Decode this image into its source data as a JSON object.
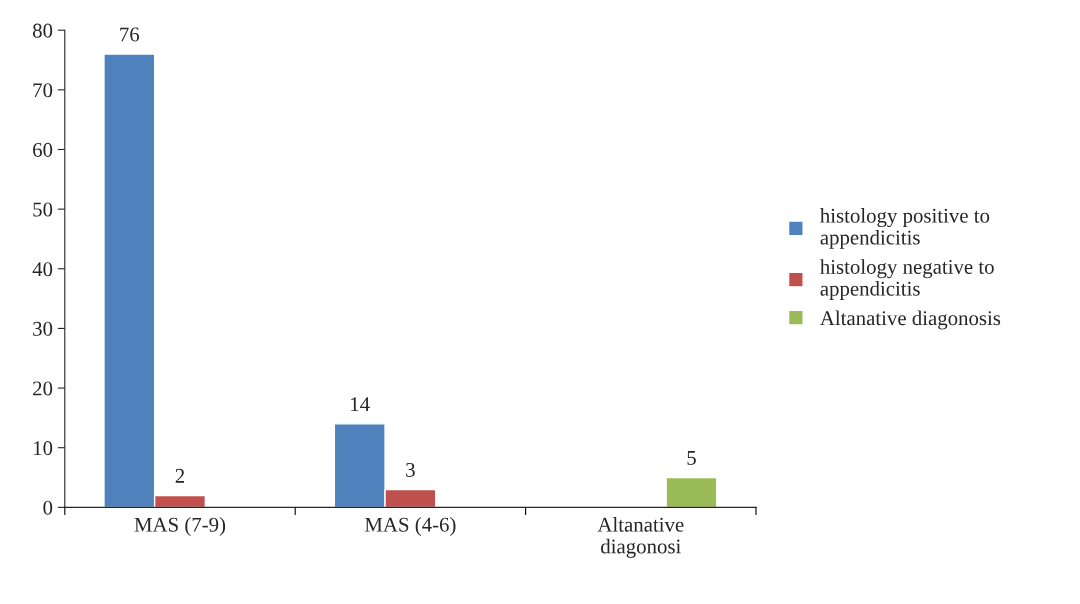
{
  "chart_data": {
    "type": "bar",
    "categories": [
      "MAS (7-9)",
      "MAS (4-6)",
      "Altanative\ndiagonosi"
    ],
    "series": [
      {
        "name": "histology positive to\nappendicitis",
        "color": "#4f81bd",
        "values": [
          76,
          14,
          null
        ]
      },
      {
        "name": "histology negative to\nappendicitis",
        "color": "#c0504d",
        "values": [
          2,
          3,
          null
        ]
      },
      {
        "name": "Altanative diagonosis",
        "color": "#9bbb59",
        "values": [
          null,
          null,
          5
        ]
      }
    ],
    "ylim": [
      0,
      80
    ],
    "yticks": [
      0,
      10,
      20,
      30,
      40,
      50,
      60,
      70,
      80
    ],
    "data_labels": true,
    "grid": false,
    "legend": "right"
  }
}
